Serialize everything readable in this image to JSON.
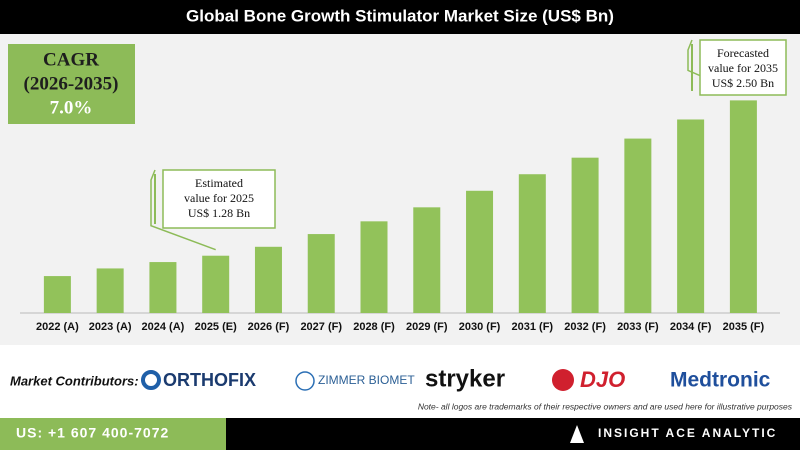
{
  "chart_data": {
    "type": "bar",
    "title": "Global Bone Growth Stimulator Market Size (US$ Bn)",
    "categories": [
      "2022 (A)",
      "2023 (A)",
      "2024 (A)",
      "2025 (E)",
      "2026 (F)",
      "2027 (F)",
      "2028 (F)",
      "2029 (F)",
      "2030 (F)",
      "2031 (F)",
      "2032 (F)",
      "2033 (F)",
      "2034 (F)",
      "2035 (F)"
    ],
    "values": [
      1.12,
      1.18,
      1.23,
      1.28,
      1.35,
      1.45,
      1.55,
      1.66,
      1.79,
      1.92,
      2.05,
      2.2,
      2.35,
      2.5
    ],
    "color": "#92c25a",
    "ylim": [
      0.83,
      2.99
    ],
    "cagr": [
      "CAGR",
      "(2026-2035)",
      "7.0%"
    ],
    "annotations": [
      {
        "lines": [
          "Estimated",
          "value for 2025",
          "US$ 1.28 Bn"
        ],
        "index": 3
      },
      {
        "lines": [
          "Forecasted",
          "value for 2035",
          "US$ 2.50 Bn"
        ],
        "index": 13
      }
    ]
  },
  "contributors": {
    "label": "Market Contributors:",
    "logos": [
      "ORTHOFIX",
      "ZIMMER BIOMET",
      "stryker",
      "DJO",
      "Medtronic"
    ],
    "note": "Note- all logos are trademarks of their respective owners and are used here for illustrative purposes"
  },
  "footer": {
    "phone": "US: +1 607 400-7072",
    "brand": "INSIGHT ACE ANALYTIC"
  }
}
